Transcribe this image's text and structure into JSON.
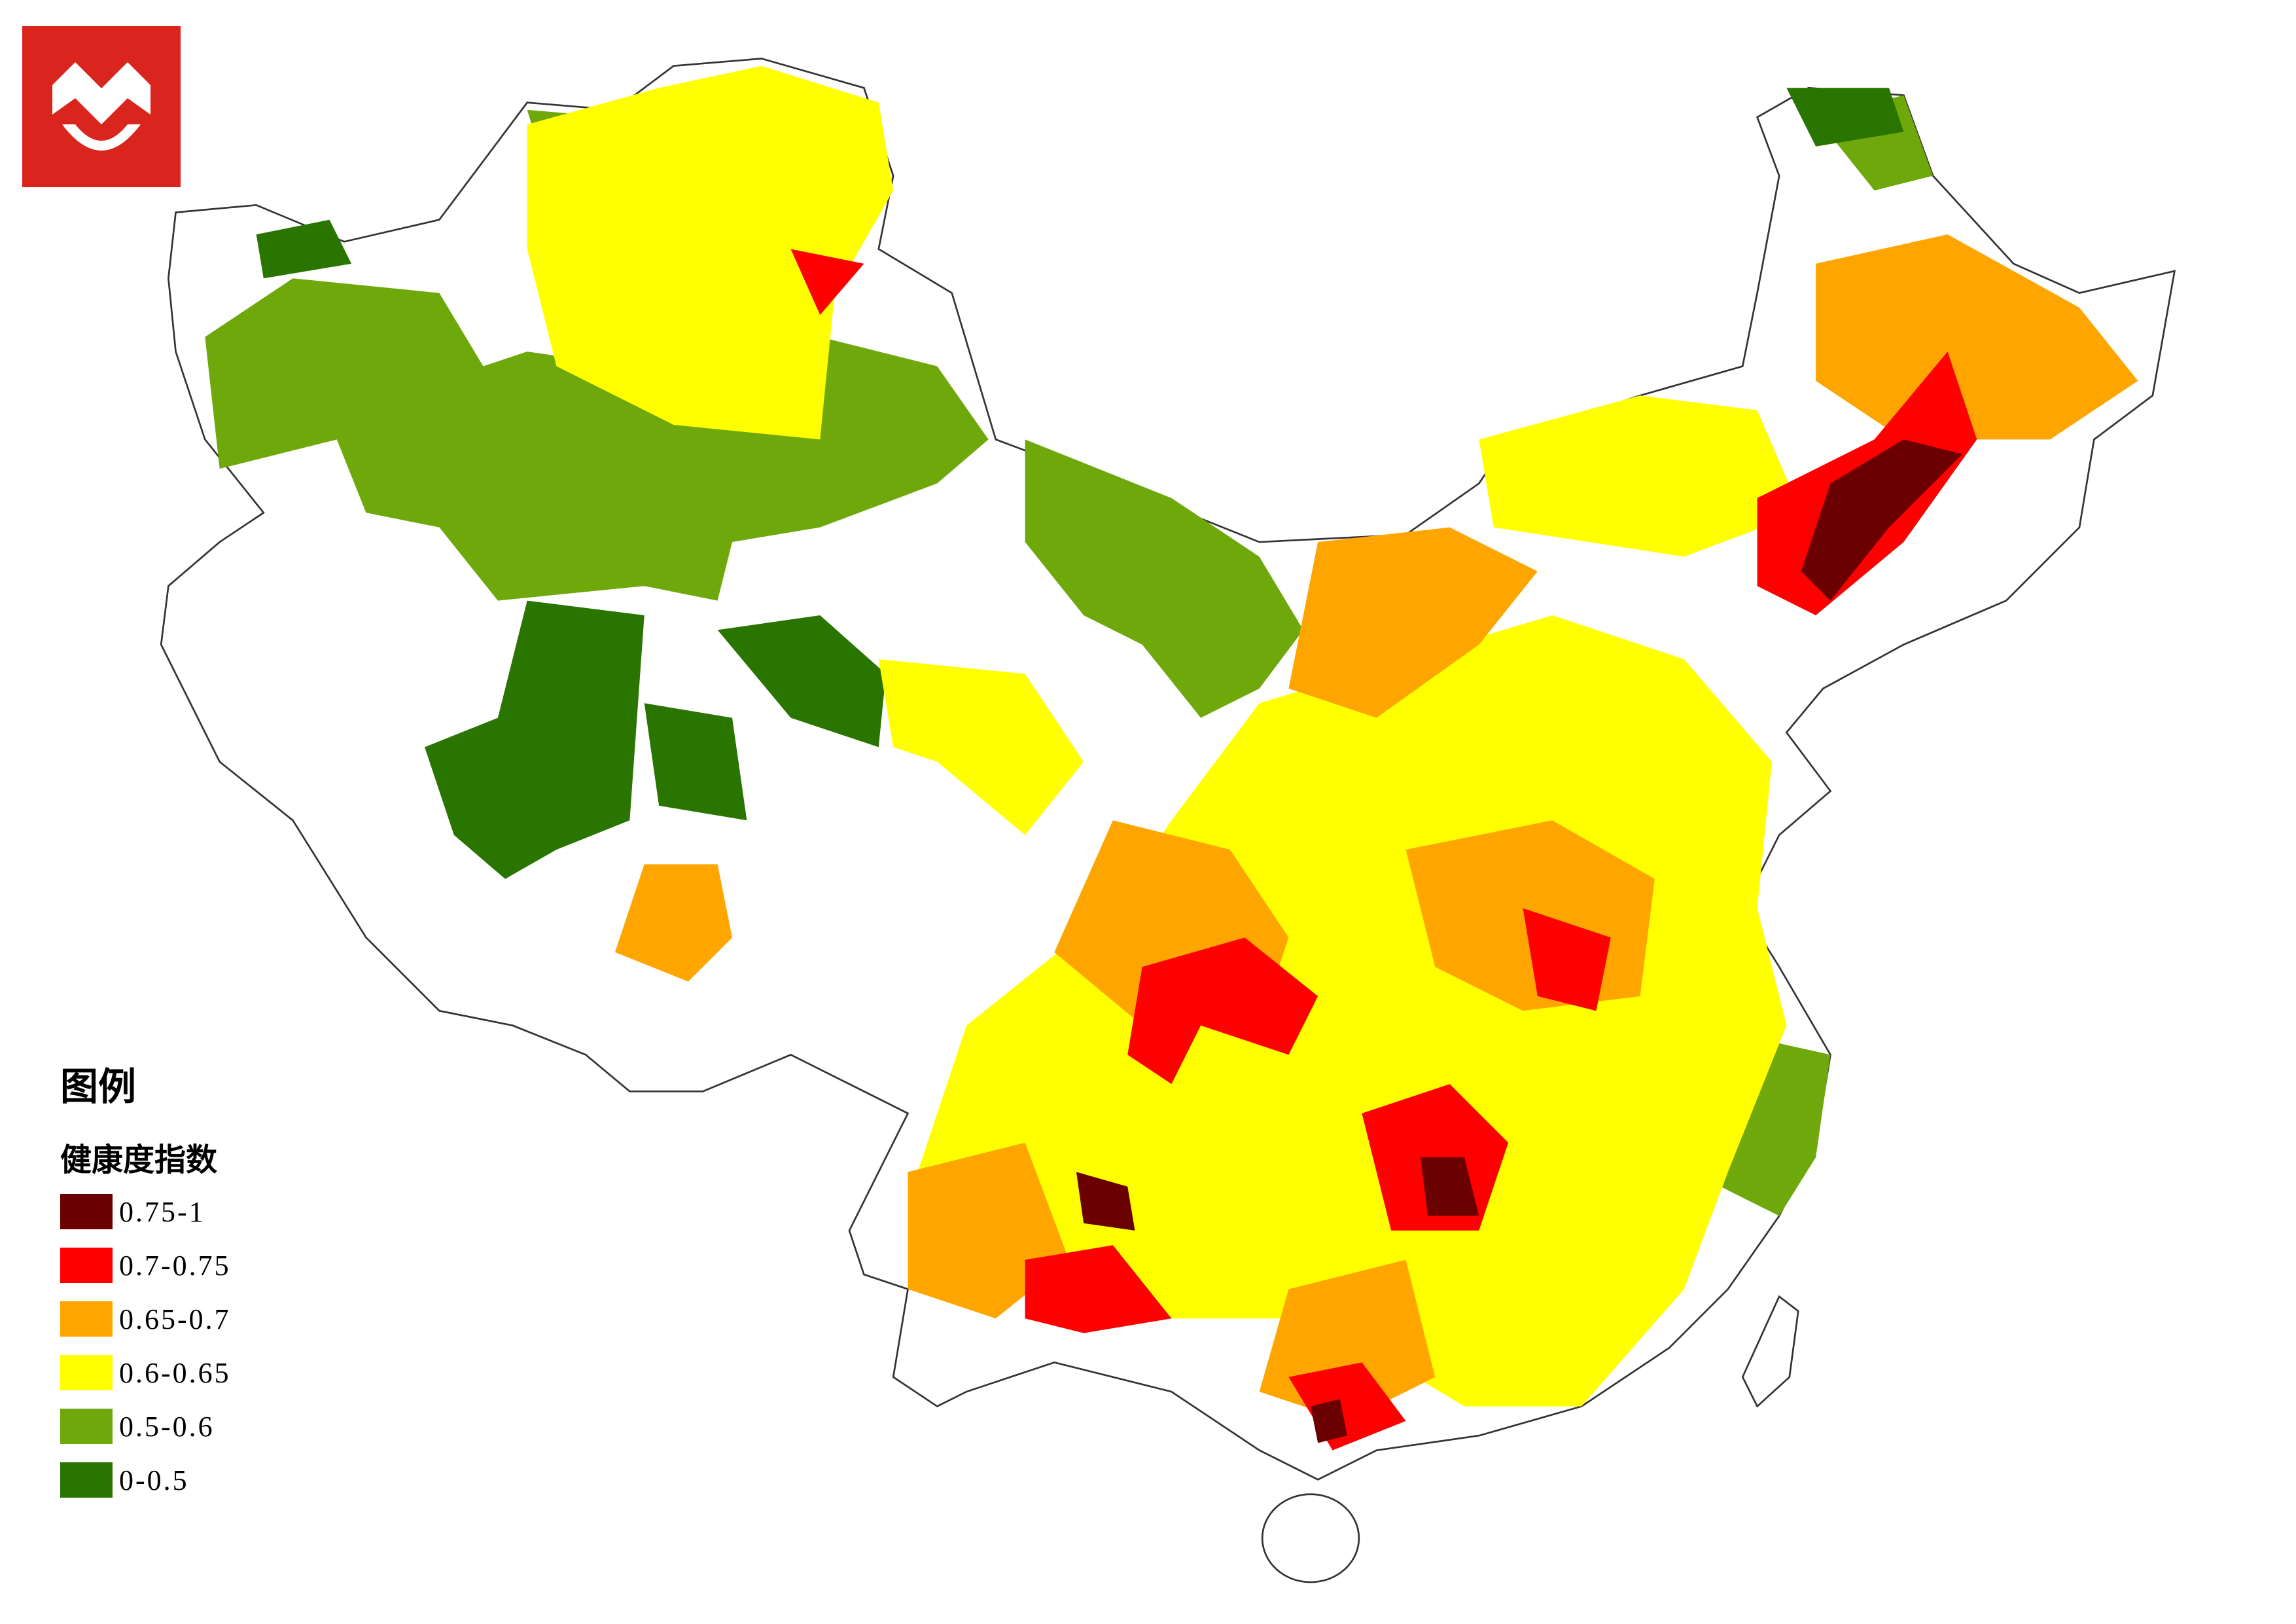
{
  "legend": {
    "title": "图例",
    "subtitle": "健康度指数",
    "items": [
      {
        "label": "0.75-1",
        "color": "#6b0000"
      },
      {
        "label": "0.7-0.75",
        "color": "#ff0000"
      },
      {
        "label": "0.65-0.7",
        "color": "#ffa500"
      },
      {
        "label": "0.6-0.65",
        "color": "#ffff00"
      },
      {
        "label": "0.5-0.6",
        "color": "#6fa80a"
      },
      {
        "label": "0-0.5",
        "color": "#2a7400"
      }
    ]
  }
}
